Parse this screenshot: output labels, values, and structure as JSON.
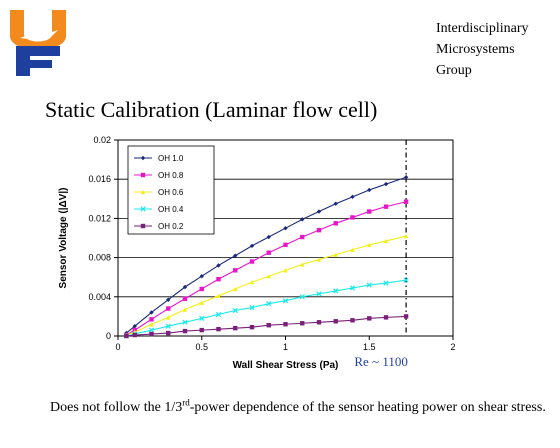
{
  "header": {
    "group_lines": [
      "Interdisciplinary",
      "Microsystems",
      "Group"
    ]
  },
  "slide": {
    "title": "Static Calibration (Laminar flow cell)",
    "footer_before": "Does not follow the 1/3",
    "footer_sup": "rd",
    "footer_after": "-power dependence of the sensor heating power on shear stress."
  },
  "colors": {
    "logo_orange": "#f28a1e",
    "logo_blue": "#1e3f9e",
    "annotation": "#1f3fa8"
  },
  "chart_data": {
    "type": "line",
    "title": "",
    "xlabel": "Wall Shear Stress (Pa)",
    "ylabel": "Sensor Voltage (|ΔV|)",
    "xlim": [
      0,
      2
    ],
    "ylim": [
      0,
      0.02
    ],
    "x_ticks": [
      "0",
      "0.5",
      "1",
      "1.5",
      "2"
    ],
    "y_ticks": [
      "0",
      "0.004",
      "0.008",
      "0.012",
      "0.016",
      "0.02"
    ],
    "grid": "horizontal",
    "legend_position": "top-left",
    "x": [
      0.05,
      0.1,
      0.2,
      0.3,
      0.4,
      0.5,
      0.6,
      0.7,
      0.8,
      0.9,
      1.0,
      1.1,
      1.2,
      1.3,
      1.4,
      1.5,
      1.6,
      1.72
    ],
    "series": [
      {
        "name": "OH 1.0",
        "color": "#1b2a7a",
        "marker": "diamond",
        "values": [
          0.0003,
          0.001,
          0.0024,
          0.0037,
          0.005,
          0.0061,
          0.0072,
          0.0082,
          0.0092,
          0.0101,
          0.011,
          0.0119,
          0.0127,
          0.0135,
          0.0142,
          0.0149,
          0.0155,
          0.0162
        ]
      },
      {
        "name": "OH 0.8",
        "color": "#e815c9",
        "marker": "square",
        "values": [
          0.0001,
          0.0006,
          0.0017,
          0.0028,
          0.0038,
          0.0048,
          0.0058,
          0.0067,
          0.0076,
          0.0085,
          0.0093,
          0.0101,
          0.0108,
          0.0115,
          0.0121,
          0.0127,
          0.0132,
          0.0137
        ]
      },
      {
        "name": "OH 0.6",
        "color": "#f5ee1a",
        "marker": "triangle",
        "values": [
          0.0001,
          0.0004,
          0.0012,
          0.0019,
          0.0027,
          0.0034,
          0.0041,
          0.0048,
          0.0055,
          0.0061,
          0.0067,
          0.0073,
          0.0078,
          0.0083,
          0.0088,
          0.0093,
          0.0097,
          0.0102
        ]
      },
      {
        "name": "OH 0.4",
        "color": "#19e8e8",
        "marker": "x",
        "values": [
          0.0,
          0.0002,
          0.0006,
          0.001,
          0.0014,
          0.0018,
          0.0022,
          0.0026,
          0.0029,
          0.0033,
          0.0036,
          0.004,
          0.0043,
          0.0046,
          0.0049,
          0.0052,
          0.0054,
          0.0057
        ]
      },
      {
        "name": "OH 0.2",
        "color": "#7a1f7a",
        "marker": "square",
        "values": [
          0.0,
          0.0001,
          0.0002,
          0.0003,
          0.0005,
          0.0006,
          0.0007,
          0.0008,
          0.0009,
          0.0011,
          0.0012,
          0.0013,
          0.0014,
          0.0015,
          0.0016,
          0.0018,
          0.0019,
          0.002
        ]
      }
    ],
    "reference_line": {
      "x": 1.72,
      "label": "Re ~ 1100"
    }
  }
}
